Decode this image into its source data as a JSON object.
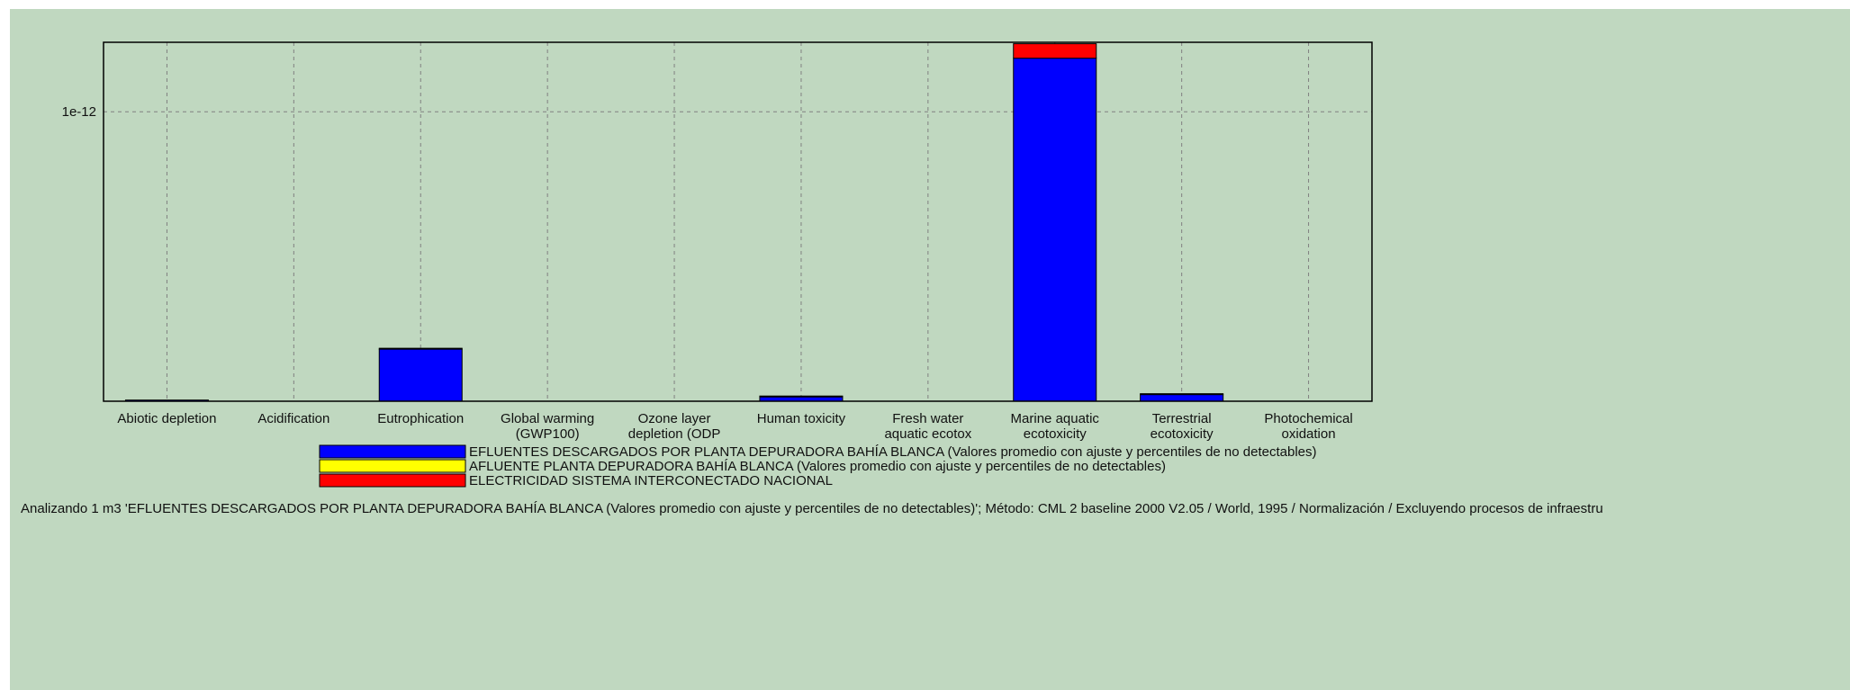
{
  "chart_data": {
    "type": "bar",
    "stacked": true,
    "categories": [
      [
        "Abiotic depletion"
      ],
      [
        "Acidification"
      ],
      [
        "Eutrophication"
      ],
      [
        "Global warming",
        "(GWP100)"
      ],
      [
        "Ozone layer",
        "depletion (ODP"
      ],
      [
        "Human toxicity"
      ],
      [
        "Fresh water",
        "aquatic ecotox"
      ],
      [
        "Marine aquatic",
        "ecotoxicity"
      ],
      [
        "Terrestrial",
        "ecotoxicity"
      ],
      [
        "Photochemical",
        "oxidation"
      ]
    ],
    "series": [
      {
        "name": "EFLUENTES DESCARGADOS POR PLANTA DEPURADORA BAHÍA BLANCA  (Valores promedio con ajuste y percentiles de no detectables)",
        "color": "#0000ff",
        "values": [
          4e-15,
          0,
          1.8e-13,
          0,
          0,
          1.5e-14,
          0,
          1.185e-12,
          2.3e-14,
          0
        ]
      },
      {
        "name": "AFLUENTE PLANTA DEPURADORA BAHÍA BLANCA (Valores promedio con ajuste y percentiles de no detectables)",
        "color": "#ffff00",
        "values": [
          0,
          0,
          0,
          0,
          0,
          0,
          0,
          0,
          0,
          0
        ]
      },
      {
        "name": "ELECTRICIDAD SISTEMA INTERCONECTADO NACIONAL",
        "color": "#ff0000",
        "values": [
          0,
          0,
          3e-15,
          0,
          0,
          3e-15,
          0,
          5e-14,
          3e-15,
          0
        ]
      }
    ],
    "yticks": [
      {
        "value": 1e-12,
        "label": "1e-12"
      }
    ],
    "ylim": [
      0,
      1.24e-12
    ],
    "grid": true,
    "legend_position": "bottom",
    "footer": "Analizando 1 m3 'EFLUENTES DESCARGADOS POR PLANTA DEPURADORA BAHÍA BLANCA  (Valores promedio con ajuste y percentiles de no detectables)';  Método: CML 2 baseline 2000 V2.05 / World, 1995 / Normalización / Excluyendo procesos de infraestru"
  }
}
